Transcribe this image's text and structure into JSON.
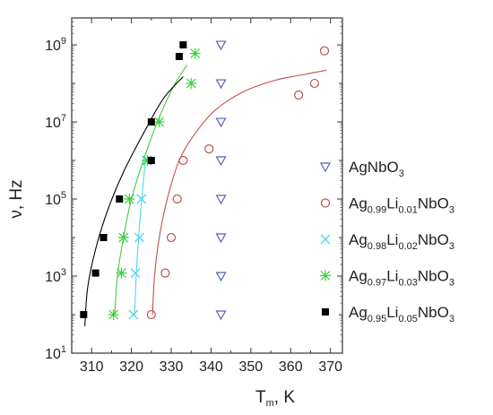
{
  "chart_data": {
    "type": "scatter",
    "title": "",
    "xlabel": "T",
    "xlabel_sub": "m",
    "xlabel_unit": ", K",
    "ylabel": "ν, Hz",
    "xlim": [
      305,
      373
    ],
    "ylim": [
      10,
      5000000000
    ],
    "yscale": "log",
    "x_ticks": [
      310,
      320,
      330,
      340,
      350,
      360,
      370
    ],
    "y_tick_exponents": [
      1,
      3,
      5,
      7,
      9
    ],
    "grid": false,
    "legend_position": "right",
    "series": [
      {
        "name_parts": [
          [
            "AgNbO",
            "n"
          ],
          [
            "3",
            "sub"
          ]
        ],
        "marker": "triangle-down",
        "color": "#5b5fb5",
        "points": [
          [
            342.5,
            100
          ],
          [
            342.5,
            1000
          ],
          [
            342.5,
            10000
          ],
          [
            342.5,
            100000
          ],
          [
            342.5,
            1000000
          ],
          [
            342.5,
            10000000
          ],
          [
            342.5,
            100000000
          ],
          [
            342.5,
            1000000000
          ]
        ]
      },
      {
        "name_parts": [
          [
            "Ag",
            "n"
          ],
          [
            "0.99",
            "sub"
          ],
          [
            "Li",
            "n"
          ],
          [
            "0.01",
            "sub"
          ],
          [
            "NbO",
            "n"
          ],
          [
            "3",
            "sub"
          ]
        ],
        "marker": "circle",
        "color": "#c0504d",
        "points": [
          [
            325,
            100
          ],
          [
            328.5,
            1200
          ],
          [
            330,
            10000
          ],
          [
            331.5,
            100000
          ],
          [
            333,
            1000000
          ],
          [
            339.5,
            2000000
          ],
          [
            362,
            50000000
          ],
          [
            366,
            100000000
          ],
          [
            368.5,
            700000000
          ]
        ],
        "fit": [
          [
            325.3,
            100
          ],
          [
            325.8,
            1000
          ],
          [
            327,
            10000
          ],
          [
            329,
            100000
          ],
          [
            332,
            1000000
          ],
          [
            336,
            5000000
          ],
          [
            341,
            20000000
          ],
          [
            348,
            60000000
          ],
          [
            356,
            120000000
          ],
          [
            362,
            160000000
          ],
          [
            369,
            220000000
          ]
        ]
      },
      {
        "name_parts": [
          [
            "Ag",
            "n"
          ],
          [
            "0.98",
            "sub"
          ],
          [
            "Li",
            "n"
          ],
          [
            "0.02",
            "sub"
          ],
          [
            "NbO",
            "n"
          ],
          [
            "3",
            "sub"
          ]
        ],
        "marker": "x",
        "color": "#4fd8f0",
        "points": [
          [
            320.5,
            100
          ],
          [
            321,
            1200
          ],
          [
            322,
            10000
          ],
          [
            322.5,
            100000
          ],
          [
            323.8,
            1000000
          ]
        ],
        "fit": [
          [
            320.8,
            100
          ],
          [
            321.2,
            1000
          ],
          [
            321.8,
            10000
          ],
          [
            322.6,
            100000
          ],
          [
            323.5,
            1000000
          ]
        ]
      },
      {
        "name_parts": [
          [
            "Ag",
            "n"
          ],
          [
            "0.97",
            "sub"
          ],
          [
            "Li",
            "n"
          ],
          [
            "0.03",
            "sub"
          ],
          [
            "NbO",
            "n"
          ],
          [
            "3",
            "sub"
          ]
        ],
        "marker": "asterisk",
        "color": "#3ecf3e",
        "points": [
          [
            315.5,
            100
          ],
          [
            317.5,
            1200
          ],
          [
            318,
            10000
          ],
          [
            319.5,
            100000
          ],
          [
            324,
            1000000
          ],
          [
            327,
            10000000
          ],
          [
            335,
            100000000
          ],
          [
            336,
            600000000
          ]
        ],
        "fit": [
          [
            315.8,
            100
          ],
          [
            316.5,
            1000
          ],
          [
            318,
            10000
          ],
          [
            320,
            100000
          ],
          [
            323,
            1000000
          ],
          [
            326.5,
            10000000
          ],
          [
            331,
            100000000
          ],
          [
            334,
            300000000
          ]
        ]
      },
      {
        "name_parts": [
          [
            "Ag",
            "n"
          ],
          [
            "0.95",
            "sub"
          ],
          [
            "Li",
            "n"
          ],
          [
            "0.05",
            "sub"
          ],
          [
            "NbO",
            "n"
          ],
          [
            "3",
            "sub"
          ]
        ],
        "marker": "square",
        "color": "#000000",
        "points": [
          [
            308,
            100
          ],
          [
            311,
            1200
          ],
          [
            313,
            10000
          ],
          [
            317,
            100000
          ],
          [
            325,
            1000000
          ],
          [
            325,
            10000000
          ],
          [
            332,
            500000000
          ],
          [
            333,
            1000000000
          ]
        ],
        "fit": [
          [
            308.3,
            50
          ],
          [
            309,
            500
          ],
          [
            311,
            5000
          ],
          [
            314,
            50000
          ],
          [
            318,
            500000
          ],
          [
            323,
            5000000
          ],
          [
            328,
            40000000
          ],
          [
            333,
            150000000
          ]
        ]
      }
    ]
  }
}
